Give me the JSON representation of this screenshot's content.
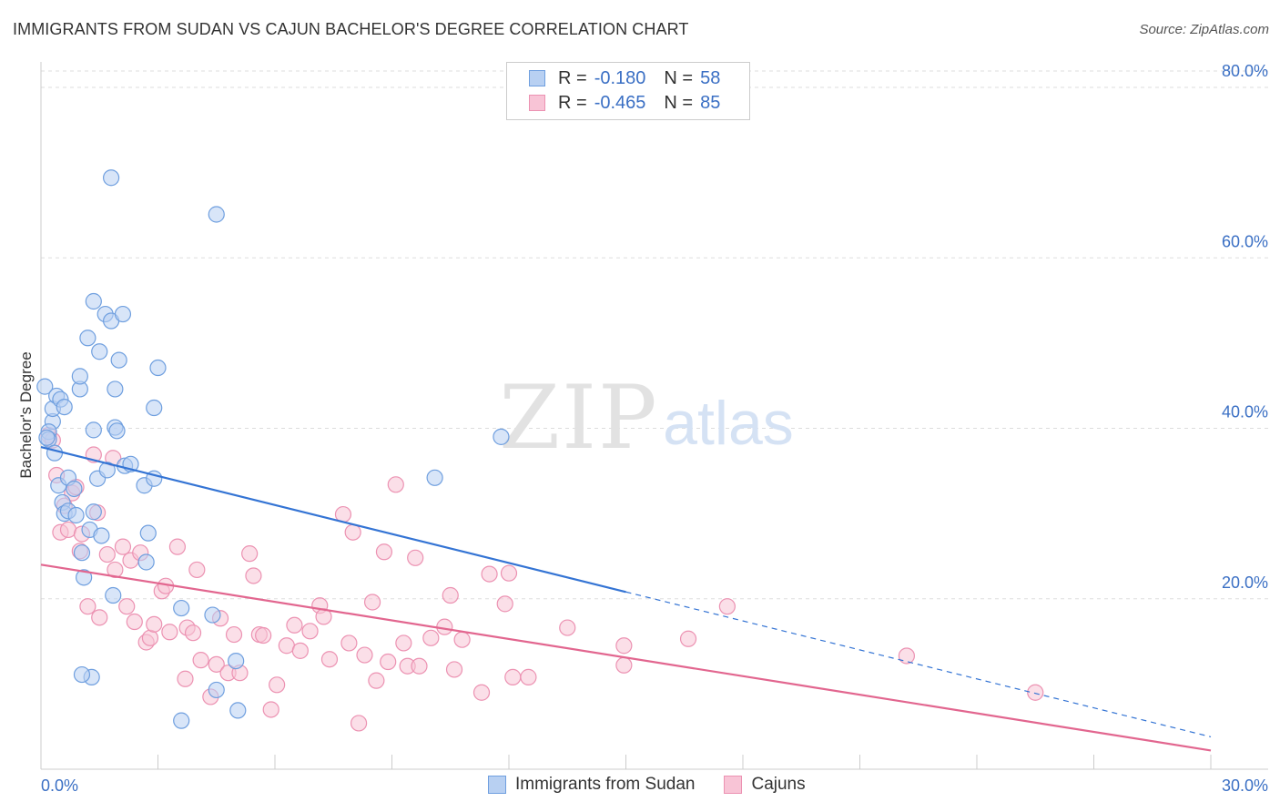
{
  "title": "IMMIGRANTS FROM SUDAN VS CAJUN BACHELOR'S DEGREE CORRELATION CHART",
  "source": "Source: ZipAtlas.com",
  "watermark": {
    "zip": "ZIP",
    "atlas": "atlas"
  },
  "colors": {
    "sudan_fill": "#b8d0f2",
    "sudan_stroke": "#6f9fdf",
    "sudan_line": "#3474d4",
    "cajun_fill": "#f8c4d6",
    "cajun_stroke": "#ec92b2",
    "cajun_line": "#e2668f",
    "axis_label": "#3a6fc4",
    "grid": "#dddddd"
  },
  "legend": {
    "rows": [
      {
        "r_label": "R =",
        "r_value": "-0.180",
        "n_label": "N =",
        "n_value": "58"
      },
      {
        "r_label": "R =",
        "r_value": "-0.465",
        "n_label": "N =",
        "n_value": "85"
      }
    ]
  },
  "chart_data": {
    "type": "scatter",
    "title": "IMMIGRANTS FROM SUDAN VS CAJUN BACHELOR'S DEGREE CORRELATION CHART",
    "xlabel": "",
    "ylabel": "Bachelor's Degree",
    "xlim": [
      0,
      30
    ],
    "ylim": [
      0,
      80
    ],
    "x_tick_labels": [
      "0.0%",
      "30.0%"
    ],
    "y_ticks": [
      20,
      40,
      60,
      80
    ],
    "y_tick_labels": [
      "20.0%",
      "40.0%",
      "60.0%",
      "80.0%"
    ],
    "grid": true,
    "series": [
      {
        "name": "Immigrants from Sudan",
        "r": -0.18,
        "n": 58,
        "trend": {
          "x0": 0,
          "y0": 37.8,
          "x1": 15,
          "y1": 20.8,
          "dash_to_x": 30,
          "dash_to_y": 3.8
        },
        "points": [
          [
            0.1,
            44.9
          ],
          [
            0.3,
            40.8
          ],
          [
            0.2,
            39.6
          ],
          [
            0.2,
            38.7
          ],
          [
            0.3,
            42.3
          ],
          [
            0.4,
            43.8
          ],
          [
            0.5,
            43.4
          ],
          [
            0.6,
            42.5
          ],
          [
            0.35,
            37.1
          ],
          [
            0.45,
            33.3
          ],
          [
            0.55,
            31.3
          ],
          [
            0.6,
            30.0
          ],
          [
            0.7,
            30.3
          ],
          [
            0.7,
            34.2
          ],
          [
            0.85,
            32.9
          ],
          [
            0.9,
            29.8
          ],
          [
            1.0,
            44.6
          ],
          [
            1.0,
            46.1
          ],
          [
            1.05,
            25.4
          ],
          [
            1.1,
            22.5
          ],
          [
            1.2,
            50.6
          ],
          [
            1.25,
            28.1
          ],
          [
            1.3,
            10.8
          ],
          [
            1.35,
            30.2
          ],
          [
            1.35,
            39.8
          ],
          [
            1.35,
            54.9
          ],
          [
            1.45,
            34.1
          ],
          [
            1.5,
            49.0
          ],
          [
            1.55,
            27.4
          ],
          [
            1.65,
            53.4
          ],
          [
            1.7,
            35.1
          ],
          [
            1.8,
            52.6
          ],
          [
            1.8,
            69.4
          ],
          [
            1.85,
            20.4
          ],
          [
            1.9,
            40.1
          ],
          [
            1.9,
            44.6
          ],
          [
            1.95,
            39.7
          ],
          [
            2.0,
            48.0
          ],
          [
            2.1,
            53.4
          ],
          [
            2.15,
            35.6
          ],
          [
            2.3,
            35.8
          ],
          [
            2.65,
            33.3
          ],
          [
            2.7,
            24.3
          ],
          [
            2.75,
            27.7
          ],
          [
            2.9,
            34.1
          ],
          [
            2.9,
            42.4
          ],
          [
            3.0,
            47.1
          ],
          [
            3.6,
            18.9
          ],
          [
            3.6,
            5.7
          ],
          [
            4.4,
            18.1
          ],
          [
            4.5,
            9.3
          ],
          [
            4.5,
            65.1
          ],
          [
            5.0,
            12.7
          ],
          [
            5.05,
            6.9
          ],
          [
            10.1,
            34.2
          ],
          [
            11.8,
            39.0
          ],
          [
            1.05,
            11.1
          ],
          [
            0.15,
            38.9
          ]
        ]
      },
      {
        "name": "Cajuns",
        "r": -0.465,
        "n": 85,
        "trend": {
          "x0": 0,
          "y0": 24.0,
          "x1": 30,
          "y1": 2.2
        },
        "points": [
          [
            0.2,
            39.2
          ],
          [
            0.3,
            38.6
          ],
          [
            0.4,
            34.5
          ],
          [
            0.5,
            27.8
          ],
          [
            0.6,
            30.9
          ],
          [
            0.7,
            28.1
          ],
          [
            0.8,
            32.4
          ],
          [
            0.9,
            33.1
          ],
          [
            1.0,
            25.6
          ],
          [
            1.05,
            27.6
          ],
          [
            1.2,
            19.1
          ],
          [
            1.35,
            36.9
          ],
          [
            1.45,
            30.1
          ],
          [
            1.5,
            17.8
          ],
          [
            1.7,
            25.2
          ],
          [
            1.85,
            36.5
          ],
          [
            1.9,
            23.4
          ],
          [
            2.1,
            26.1
          ],
          [
            2.2,
            19.1
          ],
          [
            2.3,
            24.5
          ],
          [
            2.4,
            17.3
          ],
          [
            2.55,
            25.4
          ],
          [
            2.7,
            14.9
          ],
          [
            2.8,
            15.4
          ],
          [
            2.9,
            17.0
          ],
          [
            3.1,
            20.9
          ],
          [
            3.2,
            21.5
          ],
          [
            3.3,
            16.1
          ],
          [
            3.5,
            26.1
          ],
          [
            3.7,
            10.6
          ],
          [
            3.75,
            16.6
          ],
          [
            3.9,
            16.0
          ],
          [
            4.0,
            23.4
          ],
          [
            4.1,
            12.8
          ],
          [
            4.35,
            8.5
          ],
          [
            4.5,
            12.3
          ],
          [
            4.6,
            17.7
          ],
          [
            4.8,
            11.3
          ],
          [
            4.95,
            15.8
          ],
          [
            5.1,
            11.3
          ],
          [
            5.35,
            25.3
          ],
          [
            5.45,
            22.7
          ],
          [
            5.6,
            15.8
          ],
          [
            5.7,
            15.7
          ],
          [
            5.9,
            7.0
          ],
          [
            6.05,
            9.9
          ],
          [
            6.3,
            14.5
          ],
          [
            6.5,
            16.9
          ],
          [
            6.65,
            13.9
          ],
          [
            6.9,
            16.2
          ],
          [
            7.15,
            19.2
          ],
          [
            7.25,
            17.9
          ],
          [
            7.4,
            12.9
          ],
          [
            7.75,
            29.9
          ],
          [
            7.9,
            14.8
          ],
          [
            8.0,
            27.8
          ],
          [
            8.15,
            5.4
          ],
          [
            8.3,
            13.4
          ],
          [
            8.5,
            19.6
          ],
          [
            8.6,
            10.4
          ],
          [
            8.8,
            25.5
          ],
          [
            8.9,
            12.6
          ],
          [
            9.1,
            33.4
          ],
          [
            9.3,
            14.8
          ],
          [
            9.4,
            12.1
          ],
          [
            9.6,
            24.8
          ],
          [
            9.7,
            12.1
          ],
          [
            10.0,
            15.4
          ],
          [
            10.35,
            16.7
          ],
          [
            10.5,
            20.4
          ],
          [
            10.6,
            11.7
          ],
          [
            10.8,
            15.2
          ],
          [
            11.3,
            9.0
          ],
          [
            11.5,
            22.9
          ],
          [
            11.9,
            19.4
          ],
          [
            12.0,
            23.0
          ],
          [
            12.1,
            10.8
          ],
          [
            12.5,
            10.8
          ],
          [
            13.5,
            16.6
          ],
          [
            14.95,
            12.2
          ],
          [
            14.95,
            14.5
          ],
          [
            16.6,
            15.3
          ],
          [
            17.6,
            19.1
          ],
          [
            22.2,
            13.3
          ],
          [
            25.5,
            9.0
          ]
        ]
      }
    ]
  }
}
